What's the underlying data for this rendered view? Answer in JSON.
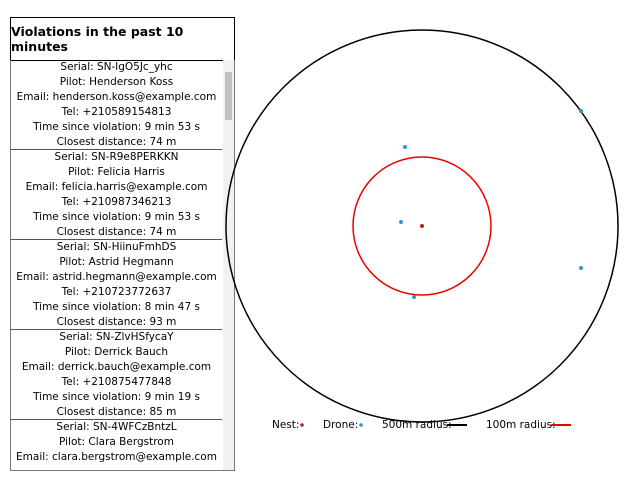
{
  "panel": {
    "title": "Violations in the past 10 minutes",
    "violations": [
      {
        "serial": "Serial: SN-lgO5Jc_yhc",
        "pilot": "Pilot: Henderson Koss",
        "email": "Email: henderson.koss@example.com",
        "tel": "Tel: +210589154813",
        "time": "Time since violation: 9 min 53 s",
        "distance": "Closest distance: 74 m"
      },
      {
        "serial": "Serial: SN-R9e8PERKKN",
        "pilot": "Pilot: Felicia Harris",
        "email": "Email: felicia.harris@example.com",
        "tel": "Tel: +210987346213",
        "time": "Time since violation: 9 min 53 s",
        "distance": "Closest distance: 74 m"
      },
      {
        "serial": "Serial: SN-HiinuFmhDS",
        "pilot": "Pilot: Astrid Hegmann",
        "email": "Email: astrid.hegmann@example.com",
        "tel": "Tel: +210723772637",
        "time": "Time since violation: 8 min 47 s",
        "distance": "Closest distance: 93 m"
      },
      {
        "serial": "Serial: SN-ZlvHSfycaY",
        "pilot": "Pilot: Derrick Bauch",
        "email": "Email: derrick.bauch@example.com",
        "tel": "Tel: +210875477848",
        "time": "Time since violation: 9 min 19 s",
        "distance": "Closest distance: 85 m"
      },
      {
        "serial": "Serial: SN-4WFCzBntzL",
        "pilot": "Pilot: Clara Bergstrom",
        "email": "Email: clara.bergstrom@example.com"
      }
    ]
  },
  "legend": {
    "nest": "Nest:",
    "drone": "Drone:",
    "radius_500": "500m radius:",
    "radius_100": "100m radius:"
  }
}
